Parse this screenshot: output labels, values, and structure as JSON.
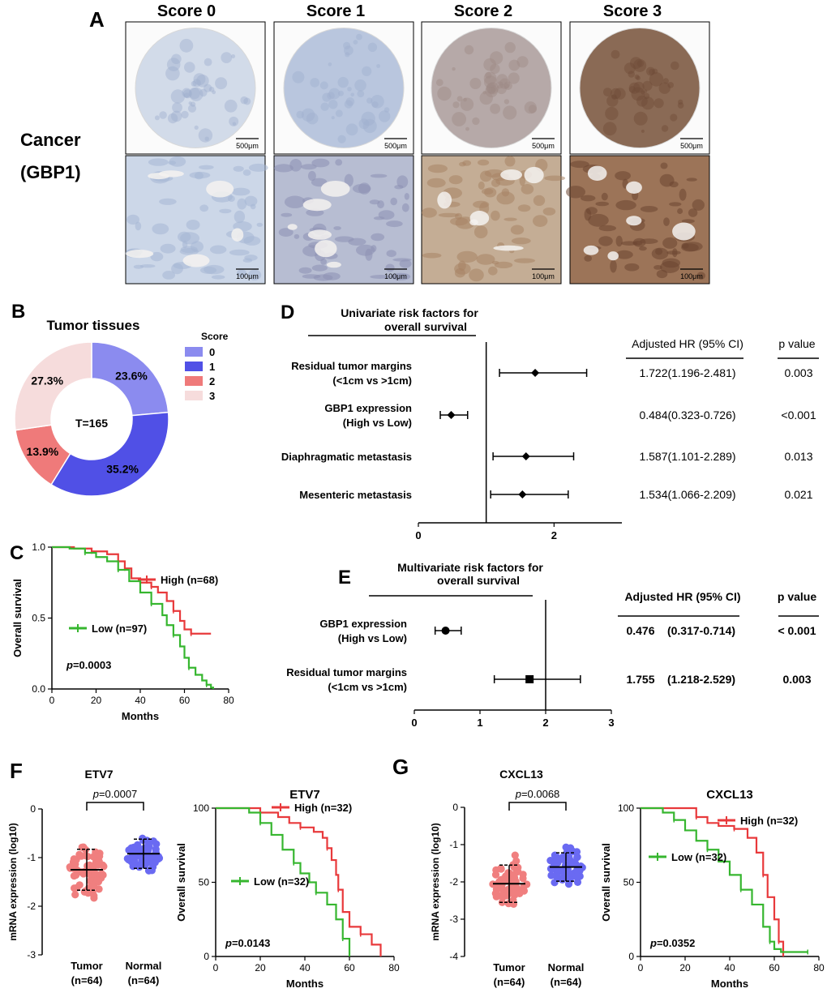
{
  "panels": {
    "A": {
      "letter": "A",
      "score_headers": [
        "Score 0",
        "Score 1",
        "Score 2",
        "Score 3"
      ],
      "row_label_1": "Cancer",
      "row_label_2": "(GBP1)",
      "scalebar_top": "500μm",
      "scalebar_bottom": "100μm",
      "tissue_colors": [
        "#d2dbe9",
        "#b9c6de",
        "#b6a9a8",
        "#8a6a55"
      ],
      "zoom_colors": [
        "#ccd7e8",
        "#b7bdd2",
        "#c4ad95",
        "#9c7458"
      ]
    },
    "B": {
      "letter": "B"
    },
    "C": {
      "letter": "C"
    },
    "D": {
      "letter": "D"
    },
    "E": {
      "letter": "E"
    },
    "F": {
      "letter": "F"
    },
    "G": {
      "letter": "G"
    }
  },
  "chart_data": [
    {
      "id": "B",
      "type": "pie",
      "title": "Tumor tissues",
      "center_label": "T=165",
      "legend_title": "Score",
      "categories": [
        "0",
        "1",
        "2",
        "3"
      ],
      "values": [
        23.6,
        35.2,
        13.9,
        27.3
      ],
      "labels": [
        "23.6%",
        "35.2%",
        "13.9%",
        "27.3%"
      ],
      "colors": [
        "#8b8bef",
        "#5050e6",
        "#ef7a7a",
        "#f6dcdc"
      ]
    },
    {
      "id": "C",
      "type": "line",
      "xlabel": "Months",
      "ylabel": "Overall survival",
      "xlim": [
        0,
        80
      ],
      "ylim": [
        0,
        1
      ],
      "xticks": [
        "0",
        "20",
        "40",
        "60",
        "80"
      ],
      "yticks": [
        "0.0",
        "0.5",
        "1.0"
      ],
      "pvalue": "=0.0003",
      "series": [
        {
          "name": "High (n=68)",
          "color": "#e8393b",
          "x": [
            0,
            10,
            18,
            25,
            30,
            33,
            36,
            40,
            45,
            48,
            52,
            55,
            58,
            60,
            63,
            72
          ],
          "y": [
            1.0,
            0.99,
            0.97,
            0.95,
            0.9,
            0.85,
            0.78,
            0.75,
            0.72,
            0.68,
            0.62,
            0.55,
            0.48,
            0.42,
            0.39,
            0.39
          ]
        },
        {
          "name": "Low (n=97)",
          "color": "#36b62f",
          "x": [
            0,
            8,
            15,
            20,
            25,
            30,
            35,
            40,
            45,
            50,
            52,
            55,
            58,
            60,
            62,
            65,
            68,
            70,
            72,
            73
          ],
          "y": [
            1.0,
            0.99,
            0.96,
            0.93,
            0.9,
            0.84,
            0.76,
            0.68,
            0.6,
            0.52,
            0.45,
            0.38,
            0.3,
            0.22,
            0.15,
            0.1,
            0.06,
            0.03,
            0.01,
            0.0
          ]
        }
      ]
    },
    {
      "id": "D",
      "type": "forest",
      "title_line1": "Univariate risk factors for",
      "title_line2": "overall survival",
      "header_hr": "Adjusted HR (95% CI)",
      "header_p": "p value",
      "xlim": [
        0,
        3
      ],
      "ref": 1,
      "xticks": [
        "0",
        "2"
      ],
      "rows": [
        {
          "label1": "Residual tumor margins",
          "label2": "(<1cm vs >1cm)",
          "hr": 1.722,
          "lo": 1.196,
          "hi": 2.481,
          "hr_text": "1.722(1.196-2.481)",
          "p": "0.003",
          "marker": "diamond"
        },
        {
          "label1": "GBP1 expression",
          "label2": "(High vs Low)",
          "hr": 0.484,
          "lo": 0.323,
          "hi": 0.726,
          "hr_text": "0.484(0.323-0.726)",
          "p": "<0.001",
          "marker": "diamond"
        },
        {
          "label1": "Diaphragmatic metastasis",
          "label2": "",
          "hr": 1.587,
          "lo": 1.101,
          "hi": 2.289,
          "hr_text": "1.587(1.101-2.289)",
          "p": "0.013",
          "marker": "diamond"
        },
        {
          "label1": "Mesenteric metastasis",
          "label2": "",
          "hr": 1.534,
          "lo": 1.066,
          "hi": 2.209,
          "hr_text": "1.534(1.066-2.209)",
          "p": "0.021",
          "marker": "diamond"
        }
      ]
    },
    {
      "id": "E",
      "type": "forest",
      "title_line1": "Multivariate risk factors for",
      "title_line2": "overall survival",
      "header_hr": "Adjusted HR (95% CI)",
      "header_p": "p value",
      "xlim": [
        0,
        3
      ],
      "ref": 2,
      "xticks": [
        "0",
        "1",
        "2",
        "3"
      ],
      "rows": [
        {
          "label1": "GBP1 expression",
          "label2": "(High vs Low)",
          "hr": 0.476,
          "lo": 0.317,
          "hi": 0.714,
          "hr_val": "0.476",
          "ci": "(0.317-0.714)",
          "p": "< 0.001",
          "marker": "circle"
        },
        {
          "label1": "Residual tumor margins",
          "label2": "(<1cm vs >1cm)",
          "hr": 1.755,
          "lo": 1.218,
          "hi": 2.529,
          "hr_val": "1.755",
          "ci": "(1.218-2.529)",
          "p": "0.003",
          "marker": "square"
        }
      ]
    },
    {
      "id": "F1",
      "type": "scatter",
      "title": "ETV7",
      "ylabel": "mRNA expression (log10)",
      "ylim": [
        -3,
        0
      ],
      "yticks": [
        "0",
        "-1",
        "-2",
        "-3"
      ],
      "pvalue": "=0.0007",
      "categories": [
        "Tumor",
        "Normal"
      ],
      "n_labels": [
        "(n=64)",
        "(n=64)"
      ],
      "series": [
        {
          "name": "Tumor",
          "color": "#f07f7f",
          "n": 64,
          "mean": -1.25,
          "sd": 0.42,
          "min": -2.45,
          "max": -0.45
        },
        {
          "name": "Normal",
          "color": "#6a6af2",
          "n": 64,
          "mean": -0.92,
          "sd": 0.3,
          "min": -1.75,
          "max": -0.3
        }
      ]
    },
    {
      "id": "F2",
      "type": "line",
      "title": "ETV7",
      "xlabel": "Months",
      "ylabel": "Overall survival",
      "xlim": [
        0,
        80
      ],
      "ylim": [
        0,
        100
      ],
      "xticks": [
        "0",
        "20",
        "40",
        "60",
        "80"
      ],
      "yticks": [
        "0",
        "50",
        "100"
      ],
      "pvalue": "=0.0143",
      "series": [
        {
          "name": "High (n=32)",
          "color": "#e8393b",
          "x": [
            0,
            12,
            20,
            28,
            33,
            38,
            44,
            48,
            50,
            52,
            54,
            55,
            57,
            60,
            65,
            70,
            74
          ],
          "y": [
            100,
            100,
            97,
            94,
            90,
            87,
            84,
            80,
            73,
            65,
            55,
            45,
            30,
            20,
            15,
            8,
            0
          ]
        },
        {
          "name": "Low (n=32)",
          "color": "#36b62f",
          "x": [
            0,
            15,
            20,
            25,
            30,
            35,
            38,
            42,
            45,
            50,
            54,
            57,
            60
          ],
          "y": [
            100,
            97,
            90,
            82,
            72,
            63,
            56,
            50,
            43,
            35,
            25,
            12,
            0
          ]
        }
      ]
    },
    {
      "id": "G1",
      "type": "scatter",
      "title": "CXCL13",
      "ylabel": "mRNA expression (log10)",
      "ylim": [
        -4,
        0
      ],
      "yticks": [
        "0",
        "-1",
        "-2",
        "-3",
        "-4"
      ],
      "pvalue": "=0.0068",
      "categories": [
        "Tumor",
        "Normal"
      ],
      "n_labels": [
        "(n=64)",
        "(n=64)"
      ],
      "series": [
        {
          "name": "Tumor",
          "color": "#f07f7f",
          "n": 64,
          "mean": -2.05,
          "sd": 0.5,
          "min": -3.25,
          "max": -1.0
        },
        {
          "name": "Normal",
          "color": "#6a6af2",
          "n": 64,
          "mean": -1.6,
          "sd": 0.38,
          "min": -2.65,
          "max": -0.9
        }
      ]
    },
    {
      "id": "G2",
      "type": "line",
      "title": "CXCL13",
      "xlabel": "Months",
      "ylabel": "Overall survival",
      "xlim": [
        0,
        80
      ],
      "ylim": [
        0,
        100
      ],
      "xticks": [
        "0",
        "20",
        "40",
        "60",
        "80"
      ],
      "yticks": [
        "0",
        "50",
        "100"
      ],
      "pvalue": "=0.0352",
      "series": [
        {
          "name": "High (n=32)",
          "color": "#e8393b",
          "x": [
            0,
            18,
            25,
            30,
            35,
            42,
            48,
            52,
            55,
            57,
            60,
            62,
            64
          ],
          "y": [
            100,
            100,
            94,
            90,
            88,
            86,
            80,
            70,
            55,
            40,
            25,
            10,
            0
          ]
        },
        {
          "name": "Low (n=32)",
          "color": "#36b62f",
          "x": [
            0,
            10,
            15,
            20,
            25,
            30,
            35,
            40,
            45,
            50,
            55,
            58,
            60,
            63,
            75
          ],
          "y": [
            100,
            97,
            92,
            85,
            78,
            72,
            64,
            55,
            45,
            35,
            20,
            10,
            5,
            3,
            3
          ]
        }
      ]
    }
  ]
}
